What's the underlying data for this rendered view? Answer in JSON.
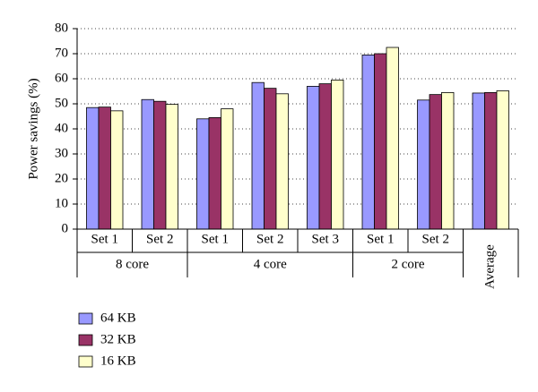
{
  "chart_data": {
    "type": "bar",
    "y_label": "Power savings (%)",
    "categories": [
      "Set 1",
      "Set 2",
      "Set 1",
      "Set 2",
      "Set 3",
      "Set 1",
      "Set 2",
      null
    ],
    "group_labels": [
      "8 core",
      "8 core",
      "4 core",
      "4 core",
      "4 core",
      "2 core",
      "2 core",
      "Average"
    ],
    "series": [
      {
        "name": "64 KB",
        "color": "#9999ff",
        "values": [
          48.5,
          51.7,
          44,
          58.5,
          57,
          69.5,
          51.5,
          54.3
        ]
      },
      {
        "name": "32 KB",
        "color": "#993366",
        "values": [
          48.7,
          51,
          44.5,
          56.2,
          58,
          70,
          53.7,
          54.5
        ]
      },
      {
        "name": "16 KB",
        "color": "#ffffcc",
        "values": [
          47.2,
          49.8,
          48,
          54,
          59.5,
          72.5,
          54.5,
          55.2
        ]
      }
    ],
    "ylim": [
      0,
      80
    ],
    "yticks": [
      0,
      10,
      20,
      30,
      40,
      50,
      60,
      70,
      80
    ],
    "grid": true
  }
}
